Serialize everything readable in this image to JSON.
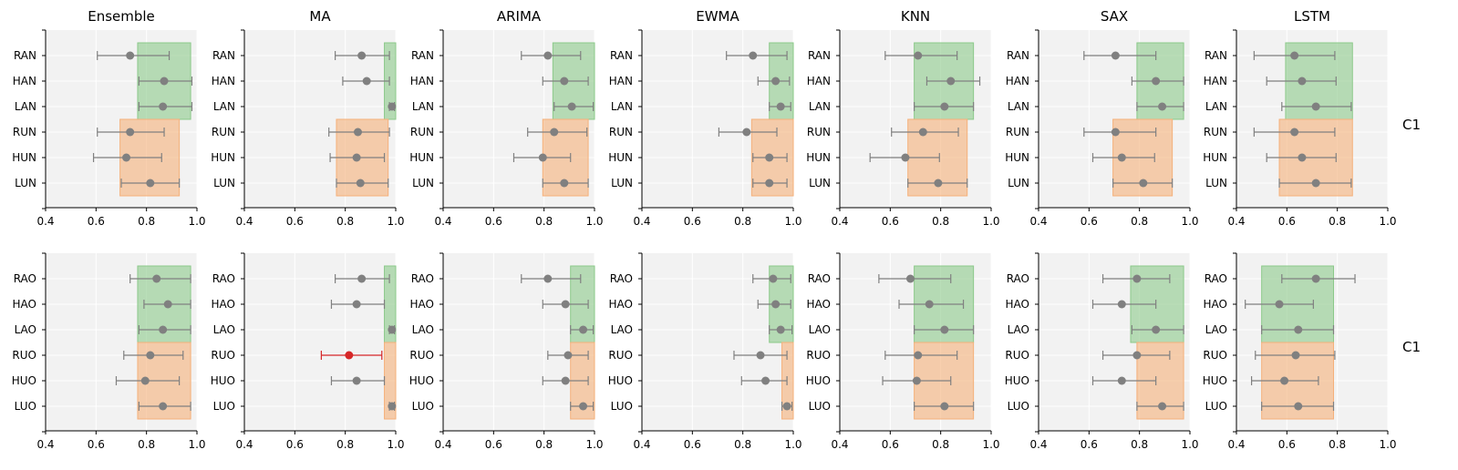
{
  "row_labels": [
    "C1",
    "C1"
  ],
  "colors": {
    "background": "#f2f2f2",
    "grid": "#ffffff",
    "green_band": "#8cc98a",
    "orange_band": "#f5b07a",
    "marker": "#808080",
    "highlight": "#d62728"
  },
  "chart_data": [
    {
      "type": "scatter",
      "title": "Ensemble",
      "row": 0,
      "col": 0,
      "xlim": [
        0.4,
        1.0
      ],
      "xticks": [
        "0.4",
        "0.6",
        "0.8",
        "1.0"
      ],
      "categories": [
        "RAN",
        "HAN",
        "LAN",
        "RUN",
        "HUN",
        "LUN"
      ],
      "points": [
        {
          "x": 0.735,
          "lo": 0.605,
          "hi": 0.89
        },
        {
          "x": 0.87,
          "lo": 0.77,
          "hi": 0.98
        },
        {
          "x": 0.865,
          "lo": 0.77,
          "hi": 0.98
        },
        {
          "x": 0.735,
          "lo": 0.605,
          "hi": 0.87
        },
        {
          "x": 0.72,
          "lo": 0.59,
          "hi": 0.86
        },
        {
          "x": 0.815,
          "lo": 0.7,
          "hi": 0.93
        }
      ],
      "bands": [
        {
          "color": "green",
          "x0": 0.765,
          "x1": 0.975,
          "cats": [
            "RAN",
            "LAN"
          ]
        },
        {
          "color": "orange",
          "x0": 0.695,
          "x1": 0.93,
          "cats": [
            "RUN",
            "LUN"
          ]
        }
      ]
    },
    {
      "type": "scatter",
      "title": "MA",
      "row": 0,
      "col": 1,
      "xlim": [
        0.4,
        1.0
      ],
      "xticks": [
        "0.4",
        "0.6",
        "0.8",
        "1.0"
      ],
      "categories": [
        "RAN",
        "HAN",
        "LAN",
        "RUN",
        "HUN",
        "LUN"
      ],
      "points": [
        {
          "x": 0.865,
          "lo": 0.76,
          "hi": 0.975
        },
        {
          "x": 0.885,
          "lo": 0.79,
          "hi": 0.975
        },
        {
          "x": 0.985,
          "lo": 0.975,
          "hi": 0.995
        },
        {
          "x": 0.85,
          "lo": 0.735,
          "hi": 0.975
        },
        {
          "x": 0.845,
          "lo": 0.74,
          "hi": 0.955
        },
        {
          "x": 0.86,
          "lo": 0.765,
          "hi": 0.97
        }
      ],
      "bands": [
        {
          "color": "green",
          "x0": 0.955,
          "x1": 1.0,
          "cats": [
            "RAN",
            "LAN"
          ]
        },
        {
          "color": "orange",
          "x0": 0.765,
          "x1": 0.97,
          "cats": [
            "RUN",
            "LUN"
          ]
        }
      ]
    },
    {
      "type": "scatter",
      "title": "ARIMA",
      "row": 0,
      "col": 2,
      "xlim": [
        0.4,
        1.0
      ],
      "xticks": [
        "0.4",
        "0.6",
        "0.8",
        "1.0"
      ],
      "categories": [
        "RAN",
        "HAN",
        "LAN",
        "RUN",
        "HUN",
        "LUN"
      ],
      "points": [
        {
          "x": 0.815,
          "lo": 0.71,
          "hi": 0.945
        },
        {
          "x": 0.88,
          "lo": 0.795,
          "hi": 0.975
        },
        {
          "x": 0.91,
          "lo": 0.84,
          "hi": 0.995
        },
        {
          "x": 0.84,
          "lo": 0.735,
          "hi": 0.97
        },
        {
          "x": 0.795,
          "lo": 0.68,
          "hi": 0.905
        },
        {
          "x": 0.88,
          "lo": 0.795,
          "hi": 0.975
        }
      ],
      "bands": [
        {
          "color": "green",
          "x0": 0.835,
          "x1": 1.0,
          "cats": [
            "RAN",
            "LAN"
          ]
        },
        {
          "color": "orange",
          "x0": 0.795,
          "x1": 0.975,
          "cats": [
            "RUN",
            "LUN"
          ]
        }
      ]
    },
    {
      "type": "scatter",
      "title": "EWMA",
      "row": 0,
      "col": 3,
      "xlim": [
        0.4,
        1.0
      ],
      "xticks": [
        "0.4",
        "0.6",
        "0.8",
        "1.0"
      ],
      "categories": [
        "RAN",
        "HAN",
        "LAN",
        "RUN",
        "HUN",
        "LUN"
      ],
      "points": [
        {
          "x": 0.84,
          "lo": 0.735,
          "hi": 0.975
        },
        {
          "x": 0.93,
          "lo": 0.86,
          "hi": 0.985
        },
        {
          "x": 0.95,
          "lo": 0.905,
          "hi": 0.99
        },
        {
          "x": 0.815,
          "lo": 0.705,
          "hi": 0.935
        },
        {
          "x": 0.905,
          "lo": 0.84,
          "hi": 0.975
        },
        {
          "x": 0.905,
          "lo": 0.84,
          "hi": 0.975
        }
      ],
      "bands": [
        {
          "color": "green",
          "x0": 0.905,
          "x1": 1.0,
          "cats": [
            "RAN",
            "LAN"
          ]
        },
        {
          "color": "orange",
          "x0": 0.835,
          "x1": 1.0,
          "cats": [
            "RUN",
            "LUN"
          ]
        }
      ]
    },
    {
      "type": "scatter",
      "title": "KNN",
      "row": 0,
      "col": 4,
      "xlim": [
        0.4,
        1.0
      ],
      "xticks": [
        "0.4",
        "0.6",
        "0.8",
        "1.0"
      ],
      "categories": [
        "RAN",
        "HAN",
        "LAN",
        "RUN",
        "HUN",
        "LUN"
      ],
      "points": [
        {
          "x": 0.71,
          "lo": 0.58,
          "hi": 0.865
        },
        {
          "x": 0.84,
          "lo": 0.745,
          "hi": 0.955
        },
        {
          "x": 0.815,
          "lo": 0.695,
          "hi": 0.93
        },
        {
          "x": 0.73,
          "lo": 0.605,
          "hi": 0.87
        },
        {
          "x": 0.66,
          "lo": 0.52,
          "hi": 0.795
        },
        {
          "x": 0.79,
          "lo": 0.67,
          "hi": 0.905
        }
      ],
      "bands": [
        {
          "color": "green",
          "x0": 0.695,
          "x1": 0.93,
          "cats": [
            "RAN",
            "LAN"
          ]
        },
        {
          "color": "orange",
          "x0": 0.67,
          "x1": 0.905,
          "cats": [
            "RUN",
            "LUN"
          ]
        }
      ]
    },
    {
      "type": "scatter",
      "title": "SAX",
      "row": 0,
      "col": 5,
      "xlim": [
        0.4,
        1.0
      ],
      "xticks": [
        "0.4",
        "0.6",
        "0.8",
        "1.0"
      ],
      "categories": [
        "RAN",
        "HAN",
        "LAN",
        "RUN",
        "HUN",
        "LUN"
      ],
      "points": [
        {
          "x": 0.705,
          "lo": 0.58,
          "hi": 0.865
        },
        {
          "x": 0.865,
          "lo": 0.77,
          "hi": 0.975
        },
        {
          "x": 0.89,
          "lo": 0.79,
          "hi": 0.975
        },
        {
          "x": 0.705,
          "lo": 0.58,
          "hi": 0.865
        },
        {
          "x": 0.73,
          "lo": 0.615,
          "hi": 0.86
        },
        {
          "x": 0.815,
          "lo": 0.695,
          "hi": 0.93
        }
      ],
      "bands": [
        {
          "color": "green",
          "x0": 0.79,
          "x1": 0.975,
          "cats": [
            "RAN",
            "LAN"
          ]
        },
        {
          "color": "orange",
          "x0": 0.695,
          "x1": 0.93,
          "cats": [
            "RUN",
            "LUN"
          ]
        }
      ]
    },
    {
      "type": "scatter",
      "title": "LSTM",
      "row": 0,
      "col": 6,
      "xlim": [
        0.4,
        1.0
      ],
      "xticks": [
        "0.4",
        "0.6",
        "0.8",
        "1.0"
      ],
      "categories": [
        "RAN",
        "HAN",
        "LAN",
        "RUN",
        "HUN",
        "LUN"
      ],
      "points": [
        {
          "x": 0.63,
          "lo": 0.47,
          "hi": 0.79
        },
        {
          "x": 0.66,
          "lo": 0.52,
          "hi": 0.795
        },
        {
          "x": 0.715,
          "lo": 0.58,
          "hi": 0.855
        },
        {
          "x": 0.63,
          "lo": 0.47,
          "hi": 0.79
        },
        {
          "x": 0.66,
          "lo": 0.52,
          "hi": 0.795
        },
        {
          "x": 0.715,
          "lo": 0.57,
          "hi": 0.855
        }
      ],
      "bands": [
        {
          "color": "green",
          "x0": 0.595,
          "x1": 0.86,
          "cats": [
            "RAN",
            "LAN"
          ]
        },
        {
          "color": "orange",
          "x0": 0.57,
          "x1": 0.86,
          "cats": [
            "RUN",
            "LUN"
          ]
        }
      ]
    },
    {
      "type": "scatter",
      "title": "",
      "row": 1,
      "col": 0,
      "xlim": [
        0.4,
        1.0
      ],
      "xticks": [
        "0.4",
        "0.6",
        "0.8",
        "1.0"
      ],
      "categories": [
        "RAO",
        "HAO",
        "LAO",
        "RUO",
        "HUO",
        "LUO"
      ],
      "points": [
        {
          "x": 0.84,
          "lo": 0.735,
          "hi": 0.975
        },
        {
          "x": 0.885,
          "lo": 0.79,
          "hi": 0.975
        },
        {
          "x": 0.865,
          "lo": 0.77,
          "hi": 0.975
        },
        {
          "x": 0.815,
          "lo": 0.71,
          "hi": 0.945
        },
        {
          "x": 0.795,
          "lo": 0.68,
          "hi": 0.93
        },
        {
          "x": 0.865,
          "lo": 0.77,
          "hi": 0.975
        }
      ],
      "bands": [
        {
          "color": "green",
          "x0": 0.765,
          "x1": 0.975,
          "cats": [
            "RAO",
            "LAO"
          ]
        },
        {
          "color": "orange",
          "x0": 0.765,
          "x1": 0.975,
          "cats": [
            "RUO",
            "LUO"
          ]
        }
      ]
    },
    {
      "type": "scatter",
      "title": "",
      "row": 1,
      "col": 1,
      "xlim": [
        0.4,
        1.0
      ],
      "xticks": [
        "0.4",
        "0.6",
        "0.8",
        "1.0"
      ],
      "categories": [
        "RAO",
        "HAO",
        "LAO",
        "RUO",
        "HUO",
        "LUO"
      ],
      "points": [
        {
          "x": 0.865,
          "lo": 0.76,
          "hi": 0.975
        },
        {
          "x": 0.845,
          "lo": 0.745,
          "hi": 0.955
        },
        {
          "x": 0.985,
          "lo": 0.975,
          "hi": 0.995
        },
        {
          "x": 0.815,
          "lo": 0.705,
          "hi": 0.945,
          "highlight": true
        },
        {
          "x": 0.845,
          "lo": 0.745,
          "hi": 0.955
        },
        {
          "x": 0.985,
          "lo": 0.975,
          "hi": 0.995
        }
      ],
      "bands": [
        {
          "color": "green",
          "x0": 0.955,
          "x1": 1.0,
          "cats": [
            "RAO",
            "LAO"
          ]
        },
        {
          "color": "orange",
          "x0": 0.955,
          "x1": 1.0,
          "cats": [
            "RUO",
            "LUO"
          ]
        }
      ]
    },
    {
      "type": "scatter",
      "title": "",
      "row": 1,
      "col": 2,
      "xlim": [
        0.4,
        1.0
      ],
      "xticks": [
        "0.4",
        "0.6",
        "0.8",
        "1.0"
      ],
      "categories": [
        "RAO",
        "HAO",
        "LAO",
        "RUO",
        "HUO",
        "LUO"
      ],
      "points": [
        {
          "x": 0.815,
          "lo": 0.71,
          "hi": 0.945
        },
        {
          "x": 0.885,
          "lo": 0.795,
          "hi": 0.975
        },
        {
          "x": 0.955,
          "lo": 0.905,
          "hi": 0.995
        },
        {
          "x": 0.895,
          "lo": 0.815,
          "hi": 0.975
        },
        {
          "x": 0.885,
          "lo": 0.795,
          "hi": 0.975
        },
        {
          "x": 0.955,
          "lo": 0.905,
          "hi": 0.995
        }
      ],
      "bands": [
        {
          "color": "green",
          "x0": 0.905,
          "x1": 1.0,
          "cats": [
            "RAO",
            "LAO"
          ]
        },
        {
          "color": "orange",
          "x0": 0.905,
          "x1": 1.0,
          "cats": [
            "RUO",
            "LUO"
          ]
        }
      ]
    },
    {
      "type": "scatter",
      "title": "",
      "row": 1,
      "col": 3,
      "xlim": [
        0.4,
        1.0
      ],
      "xticks": [
        "0.4",
        "0.6",
        "0.8",
        "1.0"
      ],
      "categories": [
        "RAO",
        "HAO",
        "LAO",
        "RUO",
        "HUO",
        "LUO"
      ],
      "points": [
        {
          "x": 0.92,
          "lo": 0.84,
          "hi": 0.99
        },
        {
          "x": 0.93,
          "lo": 0.86,
          "hi": 0.99
        },
        {
          "x": 0.95,
          "lo": 0.905,
          "hi": 0.995
        },
        {
          "x": 0.87,
          "lo": 0.765,
          "hi": 0.975
        },
        {
          "x": 0.89,
          "lo": 0.795,
          "hi": 0.975
        },
        {
          "x": 0.975,
          "lo": 0.955,
          "hi": 0.995
        }
      ],
      "bands": [
        {
          "color": "green",
          "x0": 0.905,
          "x1": 1.0,
          "cats": [
            "RAO",
            "LAO"
          ]
        },
        {
          "color": "orange",
          "x0": 0.955,
          "x1": 1.0,
          "cats": [
            "RUO",
            "LUO"
          ]
        }
      ]
    },
    {
      "type": "scatter",
      "title": "",
      "row": 1,
      "col": 4,
      "xlim": [
        0.4,
        1.0
      ],
      "xticks": [
        "0.4",
        "0.6",
        "0.8",
        "1.0"
      ],
      "categories": [
        "RAO",
        "HAO",
        "LAO",
        "RUO",
        "HUO",
        "LUO"
      ],
      "points": [
        {
          "x": 0.68,
          "lo": 0.555,
          "hi": 0.84
        },
        {
          "x": 0.755,
          "lo": 0.635,
          "hi": 0.89
        },
        {
          "x": 0.815,
          "lo": 0.695,
          "hi": 0.93
        },
        {
          "x": 0.71,
          "lo": 0.58,
          "hi": 0.865
        },
        {
          "x": 0.705,
          "lo": 0.57,
          "hi": 0.84
        },
        {
          "x": 0.815,
          "lo": 0.695,
          "hi": 0.93
        }
      ],
      "bands": [
        {
          "color": "green",
          "x0": 0.695,
          "x1": 0.93,
          "cats": [
            "RAO",
            "LAO"
          ]
        },
        {
          "color": "orange",
          "x0": 0.695,
          "x1": 0.93,
          "cats": [
            "RUO",
            "LUO"
          ]
        }
      ]
    },
    {
      "type": "scatter",
      "title": "",
      "row": 1,
      "col": 5,
      "xlim": [
        0.4,
        1.0
      ],
      "xticks": [
        "0.4",
        "0.6",
        "0.8",
        "1.0"
      ],
      "categories": [
        "RAO",
        "HAO",
        "LAO",
        "RUO",
        "HUO",
        "LUO"
      ],
      "points": [
        {
          "x": 0.79,
          "lo": 0.655,
          "hi": 0.92
        },
        {
          "x": 0.73,
          "lo": 0.615,
          "hi": 0.865
        },
        {
          "x": 0.865,
          "lo": 0.77,
          "hi": 0.975
        },
        {
          "x": 0.79,
          "lo": 0.655,
          "hi": 0.92
        },
        {
          "x": 0.73,
          "lo": 0.615,
          "hi": 0.865
        },
        {
          "x": 0.89,
          "lo": 0.79,
          "hi": 0.975
        }
      ],
      "bands": [
        {
          "color": "green",
          "x0": 0.765,
          "x1": 0.975,
          "cats": [
            "RAO",
            "LAO"
          ]
        },
        {
          "color": "orange",
          "x0": 0.79,
          "x1": 0.975,
          "cats": [
            "RUO",
            "LUO"
          ]
        }
      ]
    },
    {
      "type": "scatter",
      "title": "",
      "row": 1,
      "col": 6,
      "xlim": [
        0.4,
        1.0
      ],
      "xticks": [
        "0.4",
        "0.6",
        "0.8",
        "1.0"
      ],
      "categories": [
        "RAO",
        "HAO",
        "LAO",
        "RUO",
        "HUO",
        "LUO"
      ],
      "points": [
        {
          "x": 0.715,
          "lo": 0.58,
          "hi": 0.87
        },
        {
          "x": 0.57,
          "lo": 0.435,
          "hi": 0.705
        },
        {
          "x": 0.645,
          "lo": 0.5,
          "hi": 0.785
        },
        {
          "x": 0.635,
          "lo": 0.475,
          "hi": 0.79
        },
        {
          "x": 0.59,
          "lo": 0.46,
          "hi": 0.725
        },
        {
          "x": 0.645,
          "lo": 0.5,
          "hi": 0.785
        }
      ],
      "bands": [
        {
          "color": "green",
          "x0": 0.5,
          "x1": 0.785,
          "cats": [
            "RAO",
            "LAO"
          ]
        },
        {
          "color": "orange",
          "x0": 0.5,
          "x1": 0.785,
          "cats": [
            "RUO",
            "LUO"
          ]
        }
      ]
    }
  ]
}
